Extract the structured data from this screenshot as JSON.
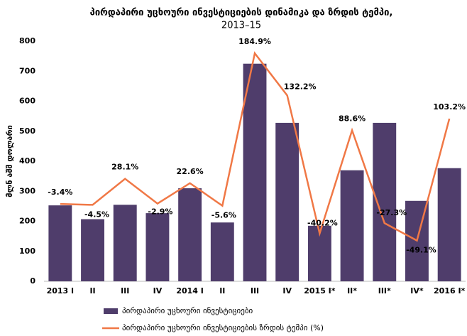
{
  "chart_data": {
    "type": "bar_line",
    "title": "პირდაპირი უცხოური ინვესტიციების დინამიკა და ზრდის ტემპი,",
    "subtitle": "2013–15",
    "y_label": "მლნ აშშ დოლარი",
    "categories": [
      "2013 I",
      "II",
      "III",
      "IV",
      "2014 I",
      "II",
      "III",
      "IV",
      "2015 I*",
      "II*",
      "III*",
      "IV*",
      "2016 I*"
    ],
    "series": [
      {
        "name": "პირდაპირი უცხოური ინვესტიციები",
        "type": "bar",
        "color": "#4f3d6b",
        "values": [
          253,
          207,
          255,
          227,
          310,
          196,
          725,
          528,
          185,
          370,
          528,
          268,
          377
        ]
      },
      {
        "name": "პირდაპირი უცხოური ინვესტიციების ზრდის ტემპი (%)",
        "type": "line",
        "color": "#f07846",
        "axis": "y2",
        "values": [
          -3.4,
          -4.5,
          28.1,
          -2.9,
          22.6,
          -5.6,
          184.9,
          132.2,
          -40.2,
          88.6,
          -27.3,
          -49.1,
          103.2
        ],
        "value_labels": [
          "-3.4%",
          "-4.5%",
          "28.1%",
          "-2.9%",
          "22.6%",
          "-5.6%",
          "184.9%",
          "132.2%",
          "-40.2%",
          "88.6%",
          "-27.3%",
          "-49.1%",
          "103.2%"
        ]
      }
    ],
    "ylim": [
      0,
      800
    ],
    "yticks": [
      0,
      100,
      200,
      300,
      400,
      500,
      600,
      700,
      800
    ],
    "y2lim": [
      -100,
      200
    ]
  }
}
